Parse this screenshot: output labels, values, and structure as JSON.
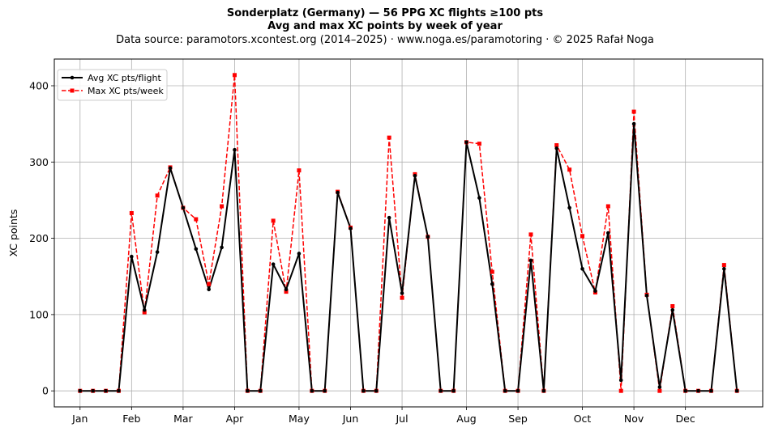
{
  "header": {
    "title": "Sonderplatz (Germany)  —  56 PPG XC flights ≥100 pts",
    "subtitle": "Avg and max XC points by week of year",
    "source": "Data source: paramotors.xcontest.org (2014–2025)  ·  www.noga.es/paramotoring  ·  © 2025 Rafał Noga"
  },
  "chart_data": {
    "type": "line",
    "title": "Sonderplatz (Germany)  —  56 PPG XC flights ≥100 pts",
    "subtitle": "Avg and max XC points by week of year",
    "xlabel": "",
    "ylabel": "XC points",
    "x_unit": "week of year",
    "xlim": [
      -1,
      54
    ],
    "ylim": [
      -21,
      435
    ],
    "yticks": [
      0,
      100,
      200,
      300,
      400
    ],
    "month_ticks": [
      {
        "label": "Jan",
        "x": 1
      },
      {
        "label": "Feb",
        "x": 5
      },
      {
        "label": "Mar",
        "x": 9
      },
      {
        "label": "Apr",
        "x": 13
      },
      {
        "label": "May",
        "x": 18
      },
      {
        "label": "Jun",
        "x": 22
      },
      {
        "label": "Jul",
        "x": 26
      },
      {
        "label": "Aug",
        "x": 31
      },
      {
        "label": "Sep",
        "x": 35
      },
      {
        "label": "Oct",
        "x": 40
      },
      {
        "label": "Nov",
        "x": 44
      },
      {
        "label": "Dec",
        "x": 48
      }
    ],
    "grid": true,
    "legend": "top-left",
    "x": [
      1,
      2,
      3,
      4,
      5,
      6,
      7,
      8,
      9,
      10,
      11,
      12,
      13,
      14,
      15,
      16,
      17,
      18,
      19,
      20,
      21,
      22,
      23,
      24,
      25,
      26,
      27,
      28,
      29,
      30,
      31,
      32,
      33,
      34,
      35,
      36,
      37,
      38,
      39,
      40,
      41,
      42,
      43,
      44,
      45,
      46,
      47,
      48,
      49,
      50,
      51,
      52
    ],
    "series": [
      {
        "name": "Avg XC pts/flight",
        "color": "#000000",
        "style": "solid",
        "marker": "circle",
        "values": [
          0,
          0,
          0,
          0,
          176,
          106,
          182,
          292,
          240,
          186,
          133,
          188,
          316,
          0,
          0,
          166,
          133,
          180,
          0,
          0,
          260,
          213,
          0,
          0,
          227,
          128,
          282,
          202,
          0,
          0,
          326,
          253,
          140,
          0,
          0,
          171,
          0,
          318,
          240,
          160,
          131,
          207,
          14,
          350,
          125,
          5,
          106,
          0,
          0,
          0,
          160,
          0
        ]
      },
      {
        "name": "Max XC pts/week",
        "color": "#ff0000",
        "style": "dashed",
        "marker": "square",
        "values": [
          0,
          0,
          0,
          0,
          233,
          103,
          256,
          293,
          240,
          225,
          140,
          242,
          414,
          0,
          0,
          223,
          130,
          289,
          0,
          0,
          261,
          214,
          0,
          0,
          332,
          122,
          284,
          202,
          0,
          0,
          326,
          324,
          156,
          0,
          0,
          205,
          0,
          322,
          290,
          203,
          129,
          242,
          0,
          366,
          126,
          0,
          111,
          0,
          0,
          0,
          165,
          0
        ]
      }
    ]
  }
}
